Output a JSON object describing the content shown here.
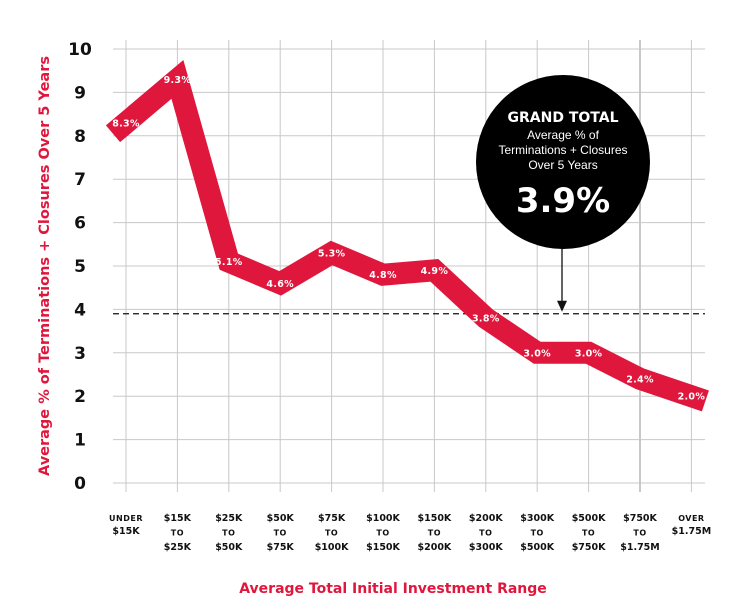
{
  "colors": {
    "series": "#e0173d",
    "axis_title": "#e0173d",
    "grid": "#c8c8c8",
    "text": "#111111",
    "callout_bg": "#000000"
  },
  "chart_data": {
    "type": "line",
    "title": "",
    "xlabel": "Average Total Initial Investment Range",
    "ylabel": "Average %  of Terminations + Closures Over 5 Years",
    "ylim": [
      0,
      10
    ],
    "yticks": [
      "0",
      "1",
      "2",
      "3",
      "4",
      "5",
      "6",
      "7",
      "8",
      "9",
      "10"
    ],
    "grid": true,
    "categories": [
      [
        "UNDER",
        "$15K"
      ],
      [
        "$15K",
        "TO",
        "$25K"
      ],
      [
        "$25K",
        "TO",
        "$50K"
      ],
      [
        "$50K",
        "TO",
        "$75K"
      ],
      [
        "$75K",
        "TO",
        "$100K"
      ],
      [
        "$100K",
        "TO",
        "$150K"
      ],
      [
        "$150K",
        "TO",
        "$200K"
      ],
      [
        "$200K",
        "TO",
        "$300K"
      ],
      [
        "$300K",
        "TO",
        "$500K"
      ],
      [
        "$500K",
        "TO",
        "$750K"
      ],
      [
        "$750K",
        "TO",
        "$1.75M"
      ],
      [
        "OVER",
        "$1.75M"
      ]
    ],
    "series": [
      {
        "name": "Average % of Terminations + Closures Over 5 Years",
        "values": [
          8.3,
          9.3,
          5.1,
          4.6,
          5.3,
          4.8,
          4.9,
          3.8,
          3.0,
          3.0,
          2.4,
          2.0
        ],
        "labels": [
          "8.3%",
          "9.3%",
          "5.1%",
          "4.6%",
          "5.3%",
          "4.8%",
          "4.9%",
          "3.8%",
          "3.0%",
          "3.0%",
          "2.4%",
          "2.0%"
        ]
      }
    ],
    "reference_line": {
      "value": 3.9,
      "style": "dashed"
    },
    "annotation": {
      "title": "GRAND TOTAL",
      "lines": [
        "Average % of",
        "Terminations + Closures",
        "Over 5 Years"
      ],
      "value": "3.9%"
    }
  }
}
